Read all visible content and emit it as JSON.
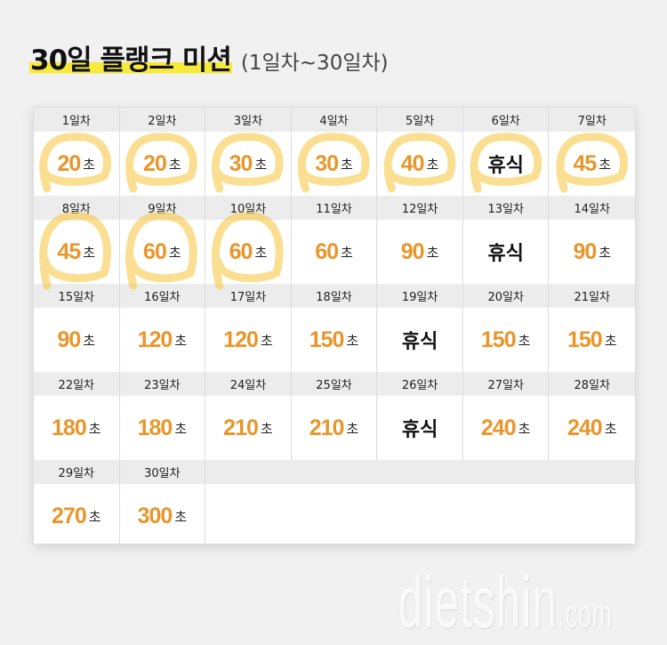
{
  "title": {
    "main": "30일 플랭크 미션",
    "sub": "(1일차~30일차)"
  },
  "unit": "초",
  "days": [
    {
      "label": "1일차",
      "value": "20"
    },
    {
      "label": "2일차",
      "value": "20"
    },
    {
      "label": "3일차",
      "value": "30"
    },
    {
      "label": "4일차",
      "value": "30"
    },
    {
      "label": "5일차",
      "value": "40"
    },
    {
      "label": "6일차",
      "rest": "휴식"
    },
    {
      "label": "7일차",
      "value": "45"
    },
    {
      "label": "8일차",
      "value": "45"
    },
    {
      "label": "9일차",
      "value": "60"
    },
    {
      "label": "10일차",
      "value": "60"
    },
    {
      "label": "11일차",
      "value": "60"
    },
    {
      "label": "12일차",
      "value": "90"
    },
    {
      "label": "13일차",
      "rest": "휴식"
    },
    {
      "label": "14일차",
      "value": "90"
    },
    {
      "label": "15일차",
      "value": "90"
    },
    {
      "label": "16일차",
      "value": "120"
    },
    {
      "label": "17일차",
      "value": "120"
    },
    {
      "label": "18일차",
      "value": "150"
    },
    {
      "label": "19일차",
      "rest": "휴식"
    },
    {
      "label": "20일차",
      "value": "150"
    },
    {
      "label": "21일차",
      "value": "150"
    },
    {
      "label": "22일차",
      "value": "180"
    },
    {
      "label": "23일차",
      "value": "180"
    },
    {
      "label": "24일차",
      "value": "210"
    },
    {
      "label": "25일차",
      "value": "210"
    },
    {
      "label": "26일차",
      "rest": "휴식"
    },
    {
      "label": "27일차",
      "value": "240"
    },
    {
      "label": "28일차",
      "value": "240"
    },
    {
      "label": "29일차",
      "value": "270"
    },
    {
      "label": "30일차",
      "value": "300"
    }
  ],
  "circled_days": [
    1,
    2,
    3,
    4,
    5,
    6,
    7,
    8,
    9,
    10
  ],
  "watermark": {
    "main": "dietshin",
    "suffix": ".com"
  },
  "colors": {
    "value": "#e8962a",
    "highlight": "#f7ea3a",
    "marker": "#f6c94a"
  }
}
